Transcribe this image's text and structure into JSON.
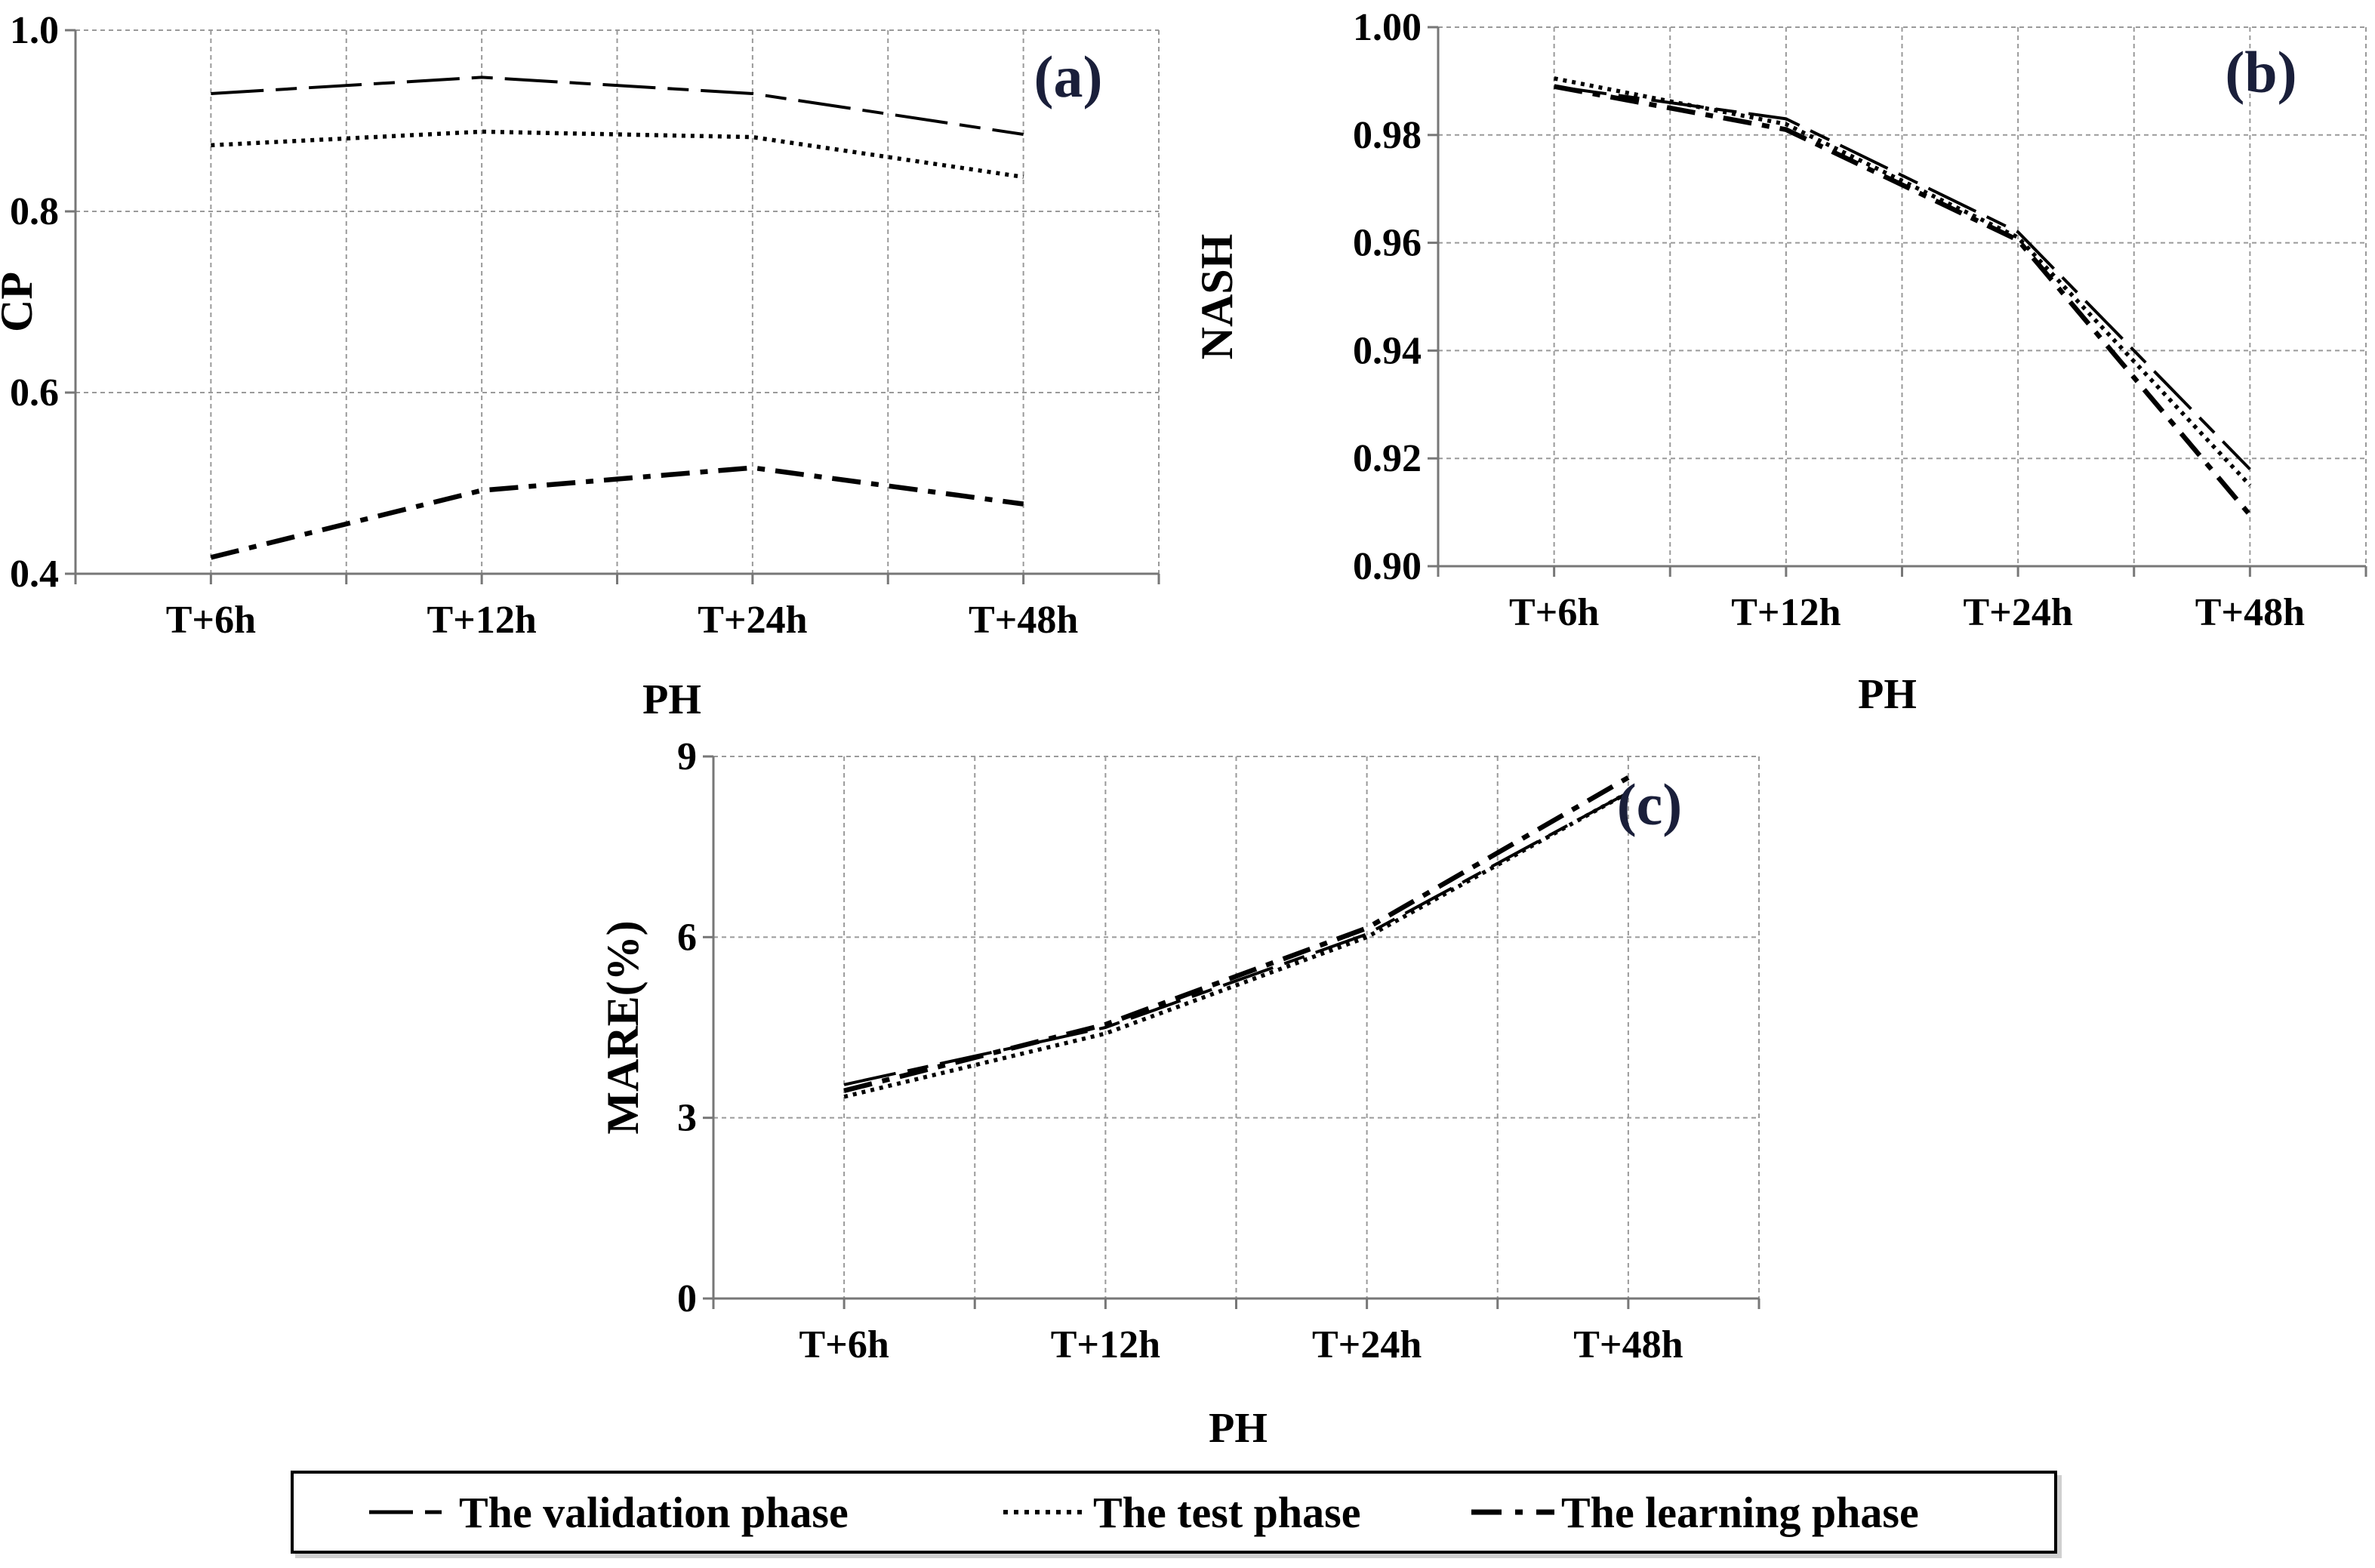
{
  "chart_data": [
    {
      "type": "line",
      "panel_label": "(a)",
      "title": "",
      "xlabel": "PH",
      "ylabel": "CP",
      "categories": [
        "T+6h",
        "T+12h",
        "T+24h",
        "T+48h"
      ],
      "ylim": [
        0.4,
        1.0
      ],
      "yticks": [
        "0.4",
        "0.6",
        "0.8",
        "1.0"
      ],
      "grid": true,
      "series": [
        {
          "name": "The validation phase",
          "style": "long-dash",
          "values": [
            0.93,
            0.948,
            0.93,
            0.885
          ]
        },
        {
          "name": "The test phase",
          "style": "dotted",
          "values": [
            0.873,
            0.888,
            0.882,
            0.838
          ]
        },
        {
          "name": "The learning phase",
          "style": "dash-dot",
          "values": [
            0.418,
            0.492,
            0.517,
            0.477
          ]
        }
      ]
    },
    {
      "type": "line",
      "panel_label": "(b)",
      "title": "",
      "xlabel": "PH",
      "ylabel": "NASH",
      "categories": [
        "T+6h",
        "T+12h",
        "T+24h",
        "T+48h"
      ],
      "ylim": [
        0.9,
        1.0
      ],
      "yticks": [
        "0.90",
        "0.92",
        "0.94",
        "0.96",
        "0.98",
        "1.00"
      ],
      "grid": true,
      "series": [
        {
          "name": "The validation phase",
          "style": "long-dash",
          "values": [
            0.989,
            0.983,
            0.962,
            0.918
          ]
        },
        {
          "name": "The test phase",
          "style": "dotted",
          "values": [
            0.9905,
            0.982,
            0.961,
            0.915
          ]
        },
        {
          "name": "The learning phase",
          "style": "dash-dot",
          "values": [
            0.989,
            0.981,
            0.9605,
            0.9095
          ]
        }
      ]
    },
    {
      "type": "line",
      "panel_label": "(c)",
      "title": "",
      "xlabel": "PH",
      "ylabel": "MARE(%)",
      "categories": [
        "T+6h",
        "T+12h",
        "T+24h",
        "T+48h"
      ],
      "ylim": [
        0,
        9
      ],
      "yticks": [
        "0",
        "3",
        "6",
        "9"
      ],
      "grid": true,
      "series": [
        {
          "name": "The validation phase",
          "style": "long-dash",
          "values": [
            3.55,
            4.5,
            6.05,
            8.4
          ]
        },
        {
          "name": "The test phase",
          "style": "dotted",
          "values": [
            3.35,
            4.4,
            6.0,
            8.4
          ]
        },
        {
          "name": "The learning phase",
          "style": "dash-dot",
          "values": [
            3.45,
            4.55,
            6.15,
            8.65
          ]
        }
      ]
    }
  ],
  "legend": {
    "items": [
      {
        "label": "The validation phase",
        "style": "long-dash"
      },
      {
        "label": "The test phase",
        "style": "dotted"
      },
      {
        "label": "The learning phase",
        "style": "dash-dot"
      }
    ]
  }
}
